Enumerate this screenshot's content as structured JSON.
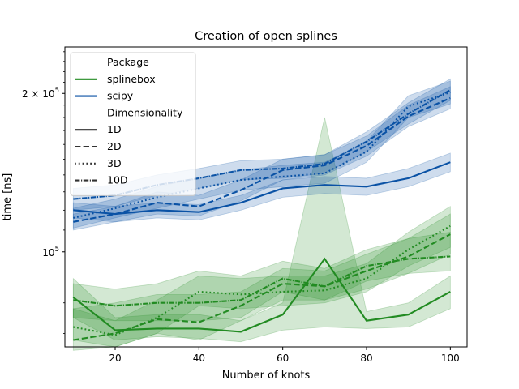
{
  "chart_data": {
    "type": "line",
    "title": "Creation of open splines",
    "xlabel": "Number of knots",
    "ylabel": "time [ns]",
    "xlim": [
      8,
      104
    ],
    "ylim": [
      66000,
      245000
    ],
    "yscale": "log",
    "x_ticks": [
      20,
      40,
      60,
      80,
      100
    ],
    "y_ticks": [
      {
        "value": 100000,
        "label": "10^5"
      },
      {
        "value": 200000,
        "label": "2×10^5"
      }
    ],
    "grid": false,
    "legend": {
      "placement": "top-left",
      "hue_title": "Package",
      "style_title": "Dimensionality",
      "hue_entries": [
        "splinebox",
        "scipy"
      ],
      "style_entries": [
        "1D",
        "2D",
        "3D",
        "10D"
      ]
    },
    "colors": {
      "splinebox": "#228b22",
      "scipy": "#0a52a5"
    },
    "x": [
      10,
      20,
      30,
      40,
      50,
      60,
      70,
      80,
      90,
      100
    ],
    "series": [
      {
        "package": "splinebox",
        "dimensionality": "1D",
        "values": [
          82000,
          71000,
          71500,
          71500,
          70500,
          76000,
          97000,
          74000,
          76000,
          84000
        ],
        "ci_low": [
          75000,
          68000,
          69000,
          68500,
          67500,
          71000,
          72000,
          71500,
          72000,
          78000
        ],
        "ci_high": [
          89000,
          75000,
          76000,
          76000,
          74000,
          80000,
          180000,
          77000,
          80000,
          90000
        ]
      },
      {
        "package": "splinebox",
        "dimensionality": "2D",
        "values": [
          68000,
          70000,
          74500,
          73500,
          79000,
          87000,
          86000,
          92000,
          98000,
          108000
        ],
        "ci_low": [
          65000,
          66000,
          70000,
          68000,
          74000,
          81000,
          81000,
          85000,
          91000,
          99000
        ],
        "ci_high": [
          78000,
          80000,
          83000,
          83000,
          84000,
          93000,
          92000,
          99000,
          106000,
          118000
        ]
      },
      {
        "package": "splinebox",
        "dimensionality": "3D",
        "values": [
          72000,
          69500,
          75000,
          84000,
          83000,
          84000,
          84500,
          89000,
          101000,
          112000
        ],
        "ci_low": [
          68000,
          66000,
          70000,
          79000,
          78000,
          79000,
          80000,
          84000,
          94000,
          102000
        ],
        "ci_high": [
          78000,
          74000,
          81000,
          90000,
          89000,
          90000,
          90000,
          95000,
          109000,
          122000
        ]
      },
      {
        "package": "splinebox",
        "dimensionality": "10D",
        "values": [
          81000,
          79000,
          80000,
          80000,
          81000,
          89000,
          86000,
          94000,
          97000,
          98000
        ],
        "ci_low": [
          75000,
          74000,
          74000,
          74000,
          75000,
          84000,
          81000,
          88000,
          91000,
          92000
        ],
        "ci_high": [
          87000,
          85000,
          87000,
          92000,
          90000,
          96000,
          93000,
          101000,
          106000,
          109000
        ]
      },
      {
        "package": "scipy",
        "dimensionality": "1D",
        "values": [
          120000,
          118000,
          120000,
          119000,
          124000,
          132000,
          134000,
          133000,
          138000,
          148000
        ],
        "ci_low": [
          116000,
          114000,
          116000,
          115000,
          120000,
          127000,
          129000,
          128000,
          133000,
          142000
        ],
        "ci_high": [
          124000,
          122000,
          124000,
          123000,
          128000,
          137000,
          139000,
          138000,
          144000,
          154000
        ]
      },
      {
        "package": "scipy",
        "dimensionality": "2D",
        "values": [
          114000,
          118000,
          124000,
          122000,
          131000,
          143000,
          146000,
          159000,
          181000,
          196000
        ],
        "ci_low": [
          110000,
          114000,
          118000,
          117000,
          125000,
          137000,
          140000,
          152000,
          173000,
          187000
        ],
        "ci_high": [
          118000,
          122000,
          130000,
          128000,
          137000,
          150000,
          153000,
          166000,
          190000,
          206000
        ]
      },
      {
        "package": "scipy",
        "dimensionality": "3D",
        "values": [
          116000,
          121000,
          127000,
          132000,
          137000,
          139000,
          141000,
          155000,
          189000,
          201000
        ],
        "ci_low": [
          111000,
          116000,
          121000,
          126000,
          131000,
          133000,
          135000,
          148000,
          180000,
          191000
        ],
        "ci_high": [
          121000,
          126000,
          133000,
          138000,
          143000,
          146000,
          148000,
          162000,
          198000,
          211000
        ]
      },
      {
        "package": "scipy",
        "dimensionality": "10D",
        "values": [
          126000,
          128000,
          134000,
          138000,
          143000,
          144000,
          147000,
          162000,
          183000,
          203000
        ],
        "ci_low": [
          120000,
          122000,
          128000,
          132000,
          137000,
          138000,
          141000,
          155000,
          175000,
          194000
        ],
        "ci_high": [
          132000,
          134000,
          140000,
          144000,
          149000,
          150000,
          153000,
          169000,
          192000,
          213000
        ]
      }
    ]
  }
}
